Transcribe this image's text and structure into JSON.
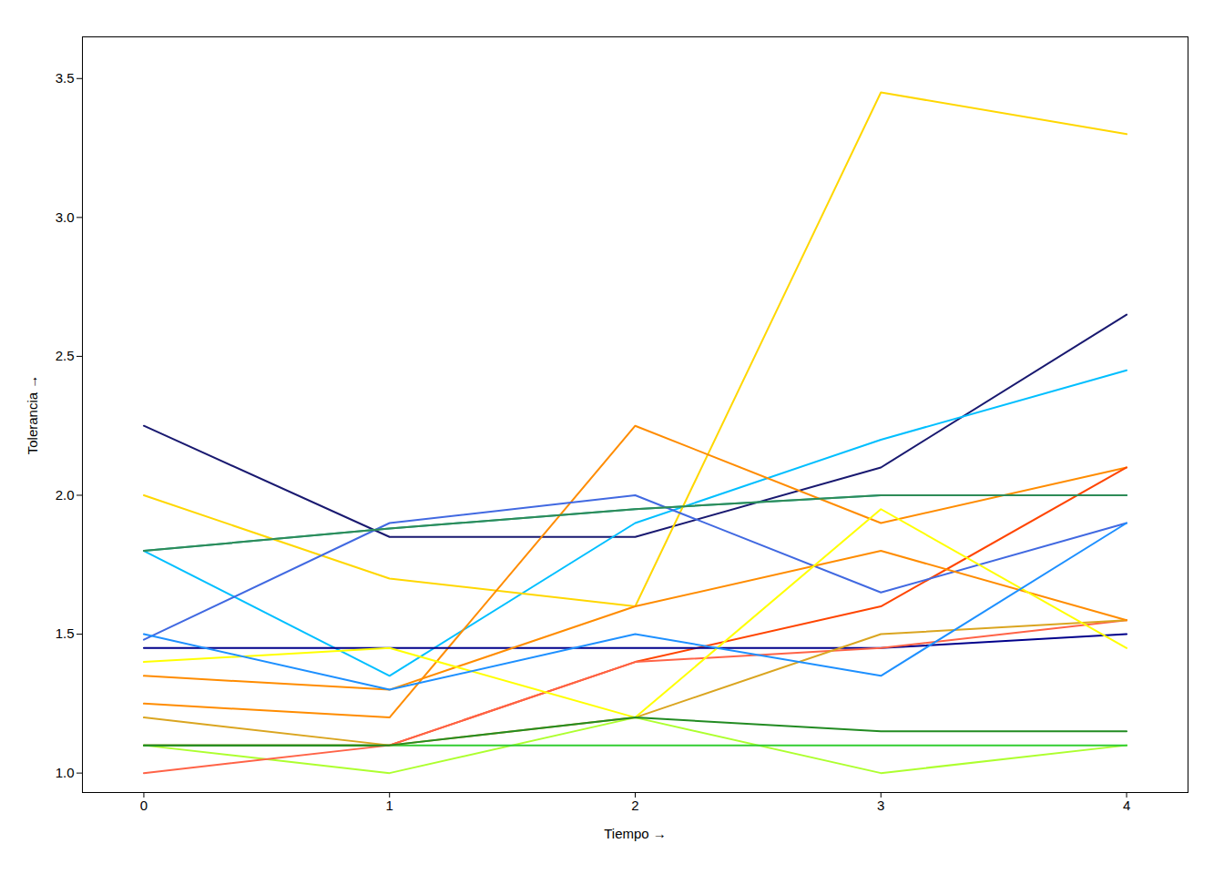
{
  "chart_data": {
    "type": "line",
    "xlabel": "Tiempo",
    "ylabel": "Tolerancia",
    "x": [
      0,
      1,
      2,
      3,
      4
    ],
    "xlim": [
      -0.25,
      4.25
    ],
    "ylim": [
      0.93,
      3.65
    ],
    "xticks": [
      0,
      1,
      2,
      3,
      4
    ],
    "yticks": [
      {
        "value": 1.0,
        "label": "1.0"
      },
      1.5,
      {
        "value": 2.0,
        "label": "2.0"
      },
      2.5,
      {
        "value": 3.0,
        "label": "3.0"
      },
      3.5
    ],
    "grid": false,
    "series": [
      {
        "color": "#191970",
        "values": [
          2.25,
          1.85,
          1.85,
          2.1,
          2.65
        ]
      },
      {
        "color": "#00bfff",
        "values": [
          1.8,
          1.35,
          1.9,
          2.2,
          2.45
        ]
      },
      {
        "color": "#20b2aa",
        "values": [
          1.8,
          1.88,
          1.95,
          2.0,
          2.0
        ]
      },
      {
        "color": "#ffd700",
        "values": [
          2.0,
          1.7,
          1.6,
          3.45,
          3.3
        ]
      },
      {
        "color": "#ff8c00",
        "values": [
          1.25,
          1.2,
          2.25,
          1.9,
          2.1
        ]
      },
      {
        "color": "#ff4500",
        "values": [
          1.1,
          1.1,
          1.4,
          1.6,
          2.1
        ]
      },
      {
        "color": "#4169e1",
        "values": [
          1.48,
          1.9,
          2.0,
          1.65,
          1.9
        ]
      },
      {
        "color": "#00008b",
        "values": [
          1.45,
          1.45,
          1.45,
          1.45,
          1.5
        ]
      },
      {
        "color": "#2e8b57",
        "values": [
          1.8,
          1.88,
          1.95,
          2.0,
          2.0
        ]
      },
      {
        "color": "#adff2f",
        "values": [
          1.1,
          1.0,
          1.2,
          1.0,
          1.1
        ]
      },
      {
        "color": "#32cd32",
        "values": [
          1.1,
          1.1,
          1.1,
          1.1,
          1.1
        ]
      },
      {
        "color": "#ff6347",
        "values": [
          1.0,
          1.1,
          1.4,
          1.45,
          1.55
        ]
      },
      {
        "color": "#daa520",
        "values": [
          1.2,
          1.1,
          1.2,
          1.5,
          1.55
        ]
      },
      {
        "color": "#ff8c00",
        "values": [
          1.35,
          1.3,
          1.6,
          1.8,
          1.55
        ]
      },
      {
        "color": "#ffff00",
        "values": [
          1.4,
          1.45,
          1.2,
          1.95,
          1.45
        ]
      },
      {
        "color": "#1e90ff",
        "values": [
          1.5,
          1.3,
          1.5,
          1.35,
          1.9
        ]
      },
      {
        "color": "#228b22",
        "values": [
          1.1,
          1.1,
          1.2,
          1.15,
          1.15
        ]
      }
    ]
  }
}
